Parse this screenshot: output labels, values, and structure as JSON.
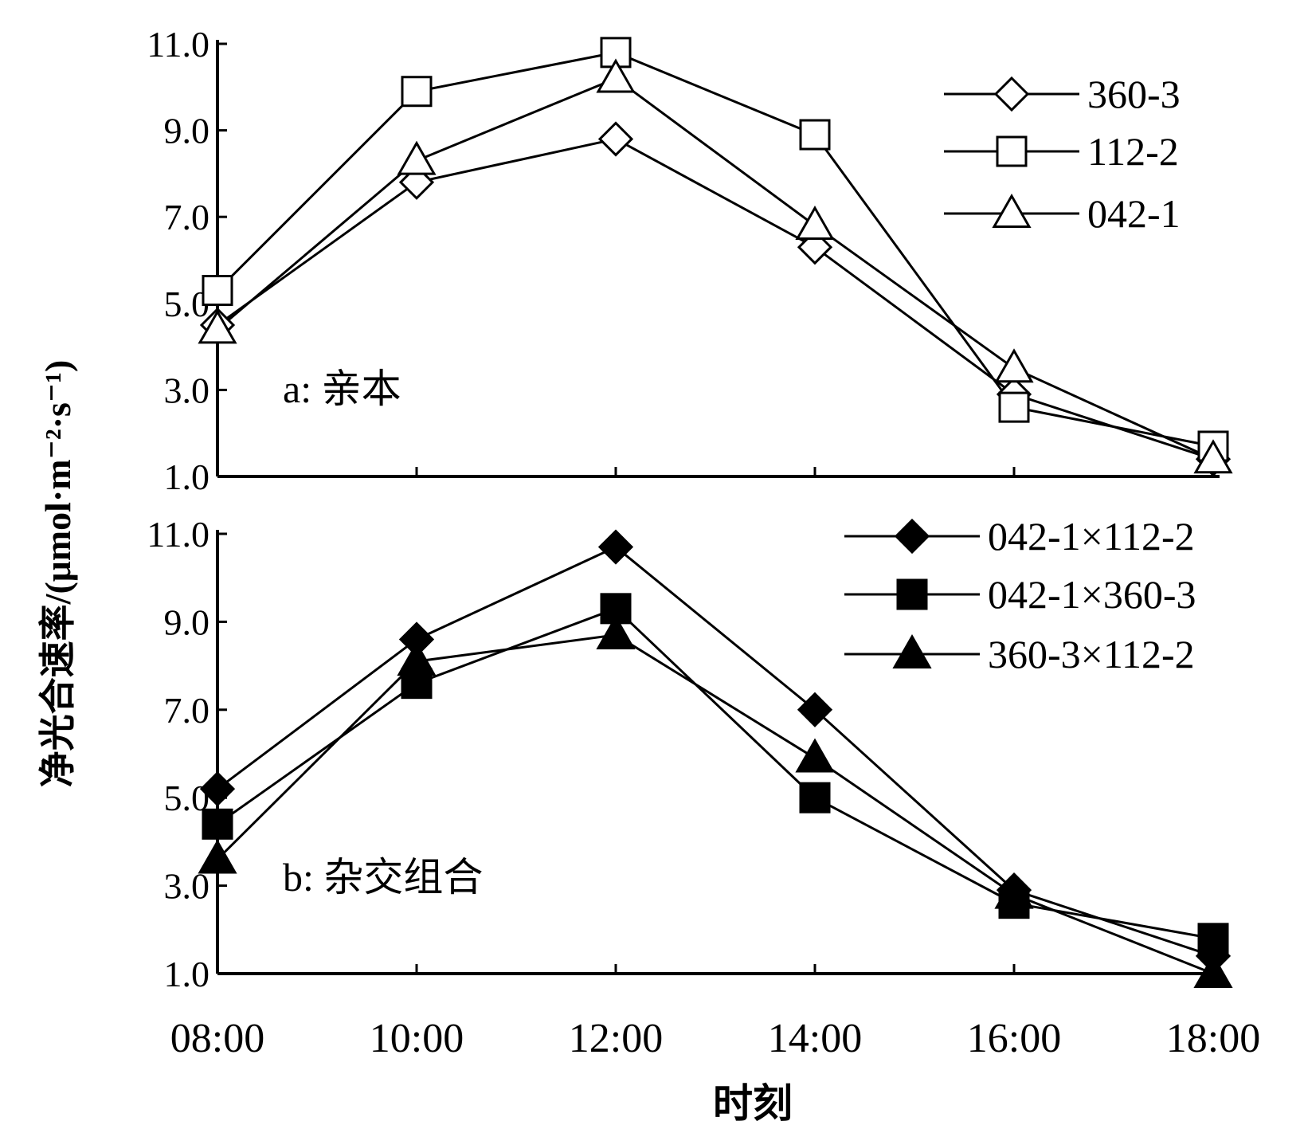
{
  "ylabel": "净光合速率/(μmol·m⁻²·s⁻¹)",
  "xlabel": "时刻",
  "chart_data": [
    {
      "type": "line",
      "panel_label": "a: 亲本",
      "x": [
        "08:00",
        "10:00",
        "12:00",
        "14:00",
        "16:00",
        "18:00"
      ],
      "ylim": [
        1.0,
        11.0
      ],
      "yticks": [
        "1.0",
        "3.0",
        "5.0",
        "7.0",
        "9.0",
        "11.0"
      ],
      "legend_position": "top-right",
      "series": [
        {
          "name": "360-3",
          "marker": "diamond-open",
          "values": [
            4.5,
            7.8,
            8.8,
            6.3,
            2.9,
            1.4
          ]
        },
        {
          "name": "112-2",
          "marker": "square-open",
          "values": [
            5.3,
            9.9,
            10.8,
            8.9,
            2.6,
            1.7
          ]
        },
        {
          "name": "042-1",
          "marker": "triangle-open",
          "values": [
            4.4,
            8.3,
            10.2,
            6.8,
            3.5,
            1.4
          ]
        }
      ]
    },
    {
      "type": "line",
      "panel_label": "b: 杂交组合",
      "x": [
        "08:00",
        "10:00",
        "12:00",
        "14:00",
        "16:00",
        "18:00"
      ],
      "ylim": [
        1.0,
        11.0
      ],
      "yticks": [
        "1.0",
        "3.0",
        "5.0",
        "7.0",
        "9.0",
        "11.0"
      ],
      "legend_position": "top-right",
      "series": [
        {
          "name": "042-1×112-2",
          "marker": "diamond-filled",
          "values": [
            5.2,
            8.6,
            10.7,
            7.0,
            2.9,
            1.4
          ]
        },
        {
          "name": "042-1×360-3",
          "marker": "square-filled",
          "values": [
            4.4,
            7.6,
            9.3,
            5.0,
            2.6,
            1.8
          ]
        },
        {
          "name": "360-3×112-2",
          "marker": "triangle-filled",
          "values": [
            3.6,
            8.1,
            8.7,
            5.9,
            2.8,
            1.0
          ]
        }
      ]
    }
  ]
}
